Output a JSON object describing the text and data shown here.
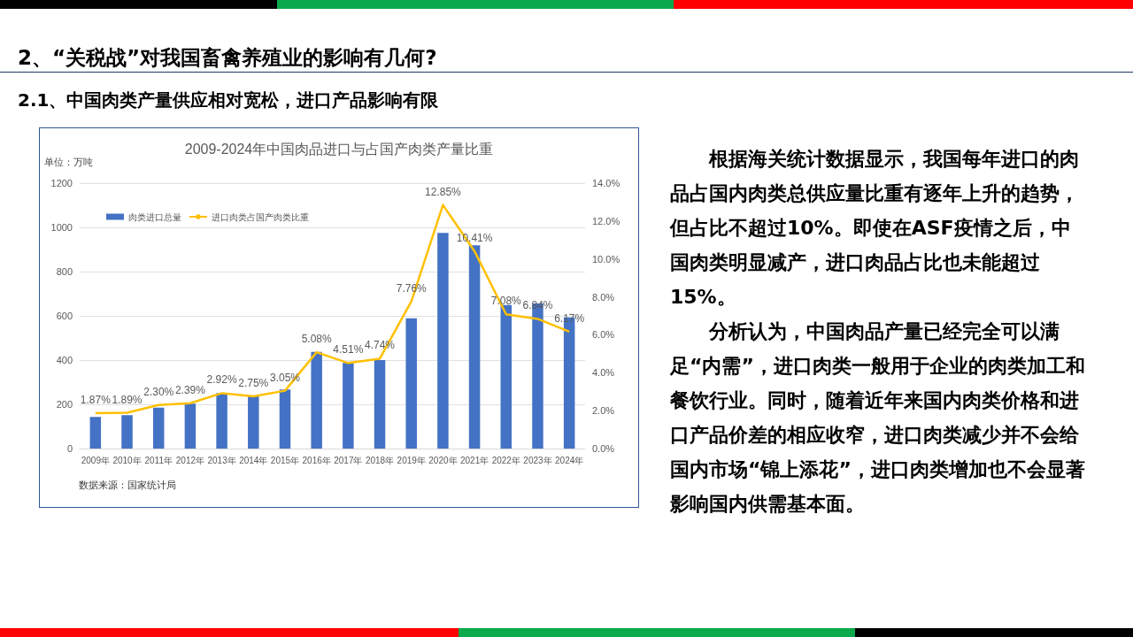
{
  "chart_data": {
    "type": "bar",
    "title": "2009-2024年中国肉品进口与占国产肉类产量比重",
    "ylabel": "单位：万吨",
    "categories": [
      "2009年",
      "2010年",
      "2011年",
      "2012年",
      "2013年",
      "2014年",
      "2015年",
      "2016年",
      "2017年",
      "2018年",
      "2019年",
      "2020年",
      "2021年",
      "2022年",
      "2023年",
      "2024年"
    ],
    "series": [
      {
        "name": "肉类进口总量",
        "color": "#4472c4",
        "values": [
          143,
          151,
          185,
          203,
          251,
          236,
          267,
          437,
          387,
          400,
          589,
          975,
          919,
          649,
          656,
          593
        ]
      },
      {
        "name": "进口肉类占国产肉类比重",
        "type": "line",
        "axis": "y2",
        "color": "#ffc000",
        "marker": "none",
        "values": [
          1.87,
          1.89,
          2.3,
          2.39,
          2.92,
          2.75,
          3.05,
          5.08,
          4.51,
          4.74,
          7.76,
          12.85,
          10.41,
          7.08,
          6.84,
          6.17
        ],
        "value_labels": [
          "1.87%",
          "1.89%",
          "2.30%",
          "2.39%",
          "2.92%",
          "2.75%",
          "3.05%",
          "5.08%",
          "4.51%",
          "4.74%",
          "7.76%",
          "12.85%",
          "10.41%",
          "7.08%",
          "6.84%",
          "6.17%"
        ]
      }
    ],
    "ylim": [
      0,
      1200
    ],
    "yticks": [
      0,
      200,
      400,
      600,
      800,
      1000,
      1200
    ],
    "y2lim": [
      0,
      14
    ],
    "y2ticks": [
      {
        "value": 0,
        "label": "0.0%"
      },
      {
        "value": 2,
        "label": "2.0%"
      },
      {
        "value": 4,
        "label": "4.0%"
      },
      {
        "value": 6,
        "label": "6.0%"
      },
      {
        "value": 8,
        "label": "8.0%"
      },
      {
        "value": 10,
        "label": "10.0%"
      },
      {
        "value": 12,
        "label": "12.0%"
      },
      {
        "value": 14,
        "label": "14.0%"
      }
    ],
    "grid": "y",
    "legend": "top left",
    "annotations": [
      "2、“关税战”对我国畜禽养殖业的影响有几何?",
      "2.1、中国肉类产量供应相对宽松，进口产品影响有限",
      "根据海关统计数据显示，我国每年进口的肉品占国内肉类总供应量比重有逐年上升的趋势，但占比不超过10%。即使在ASF疫情之后，中国肉类明显减产，进口肉品占比也未能超过15%。",
      "分析认为，中国肉品产量已经完全可以满足“内需”，进口肉类一般用于企业的肉类加工和餐饮行业。同时，随着近年来国内肉类价格和进口产品价差的相应收窄，进口肉类减少并不会给国内市场“锦上添花”，进口肉类增加也不会显著影响国内供需基本面。",
      "数据来源：国家统计局"
    ]
  }
}
